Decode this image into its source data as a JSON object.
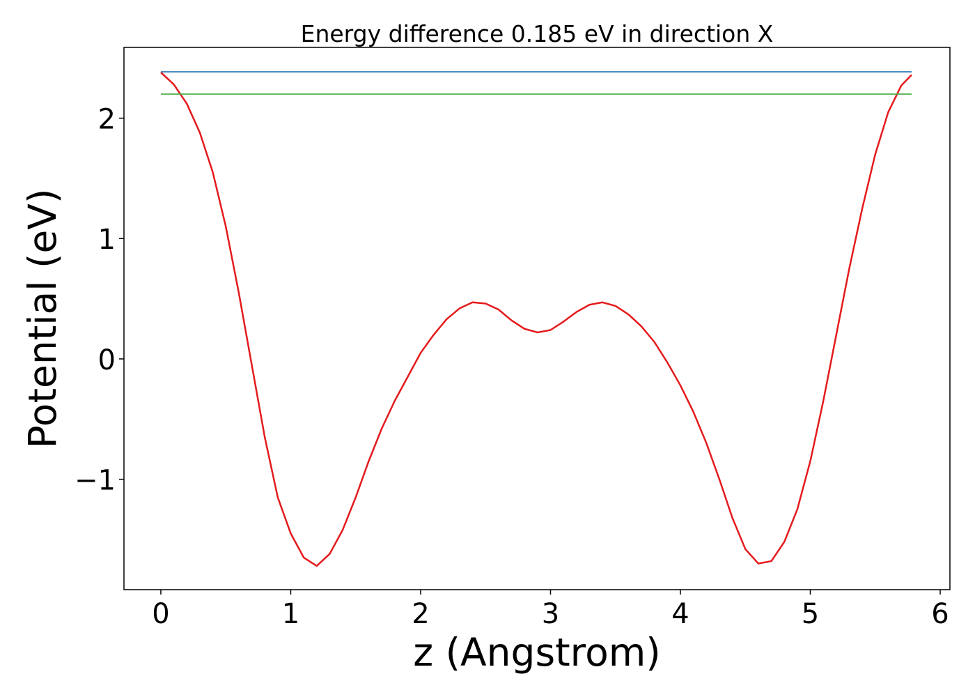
{
  "chart_data": {
    "type": "line",
    "title": "Energy difference 0.185 eV in direction X",
    "xlabel": "z (Angstrom)",
    "ylabel": "Potential (eV)",
    "xlim": [
      -0.284,
      6.075
    ],
    "ylim": [
      -1.917,
      2.588
    ],
    "xticks": [
      0,
      1,
      2,
      3,
      4,
      5,
      6
    ],
    "yticks": [
      {
        "value": -1,
        "label": "−1"
      },
      0,
      1,
      2
    ],
    "series": [
      {
        "color": "#e41a1c",
        "x": [
          0,
          0.1,
          0.2,
          0.3,
          0.4,
          0.5,
          0.6,
          0.7,
          0.8,
          0.9,
          1.0,
          1.1,
          1.2,
          1.3,
          1.4,
          1.5,
          1.6,
          1.7,
          1.8,
          1.9,
          2.0,
          2.1,
          2.2,
          2.3,
          2.4,
          2.5,
          2.6,
          2.7,
          2.8,
          2.9,
          3.0,
          3.1,
          3.2,
          3.3,
          3.4,
          3.5,
          3.6,
          3.7,
          3.8,
          3.9,
          4.0,
          4.1,
          4.2,
          4.3,
          4.4,
          4.5,
          4.6,
          4.7,
          4.8,
          4.9,
          5.0,
          5.1,
          5.2,
          5.3,
          5.4,
          5.5,
          5.6,
          5.7,
          5.78
        ],
        "values": [
          2.38,
          2.28,
          2.12,
          1.88,
          1.55,
          1.1,
          0.55,
          -0.05,
          -0.65,
          -1.15,
          -1.45,
          -1.65,
          -1.72,
          -1.62,
          -1.42,
          -1.15,
          -0.85,
          -0.58,
          -0.35,
          -0.15,
          0.05,
          0.2,
          0.33,
          0.42,
          0.47,
          0.46,
          0.41,
          0.32,
          0.25,
          0.22,
          0.24,
          0.31,
          0.39,
          0.45,
          0.47,
          0.44,
          0.37,
          0.27,
          0.14,
          -0.03,
          -0.22,
          -0.44,
          -0.7,
          -1.0,
          -1.32,
          -1.58,
          -1.7,
          -1.68,
          -1.52,
          -1.25,
          -0.85,
          -0.35,
          0.2,
          0.75,
          1.25,
          1.7,
          2.05,
          2.27,
          2.36
        ]
      },
      {
        "color": "#377eb8",
        "x": [
          0,
          5.78
        ],
        "values": [
          2.385,
          2.385
        ]
      },
      {
        "color": "#4daf4a",
        "x": [
          0,
          5.78
        ],
        "values": [
          2.2,
          2.2
        ]
      }
    ]
  }
}
